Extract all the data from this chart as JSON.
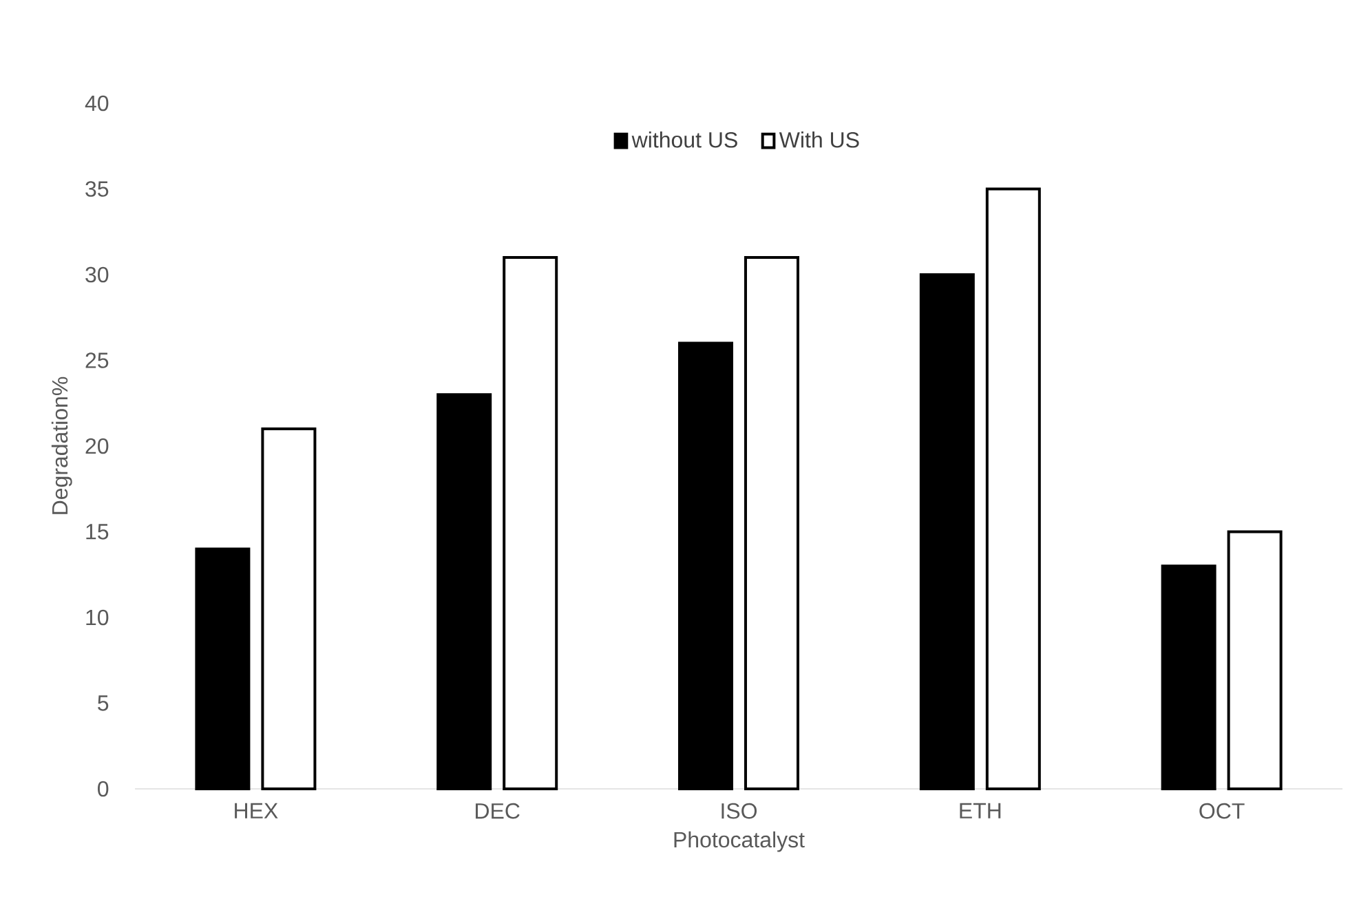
{
  "chart_data": {
    "type": "bar",
    "xlabel": "Photocatalyst",
    "ylabel": "Degradation%",
    "categories": [
      "HEX",
      "DEC",
      "ISO",
      "ETH",
      "OCT"
    ],
    "series": [
      {
        "name": "without US",
        "color": "#000000",
        "values": [
          14,
          23,
          26,
          30,
          13
        ]
      },
      {
        "name": "With US",
        "color": "#ffffff",
        "values": [
          21,
          31,
          31,
          35,
          15
        ]
      }
    ],
    "ylim": [
      0,
      40
    ],
    "yticks": [
      0,
      5,
      10,
      15,
      20,
      25,
      30,
      35,
      40
    ],
    "grid": false,
    "legend": "top"
  }
}
